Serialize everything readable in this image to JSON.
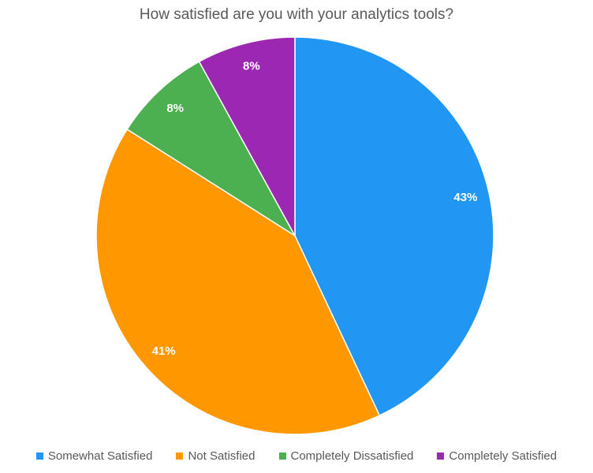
{
  "chart_data": {
    "type": "pie",
    "title": "How satisfied are you with your analytics tools?",
    "legend_position": "bottom",
    "start_angle_deg": 0,
    "direction": "clockwise",
    "slices": [
      {
        "label": "Somewhat Satisfied",
        "value": 43,
        "display": "43%",
        "color": "#2196F3"
      },
      {
        "label": "Not Satisfied",
        "value": 41,
        "display": "41%",
        "color": "#FF9800"
      },
      {
        "label": "Completely Dissatisfied",
        "value": 8,
        "display": "8%",
        "color": "#4CAF50"
      },
      {
        "label": "Completely Satisfied",
        "value": 8,
        "display": "8%",
        "color": "#9C27B0"
      }
    ]
  }
}
